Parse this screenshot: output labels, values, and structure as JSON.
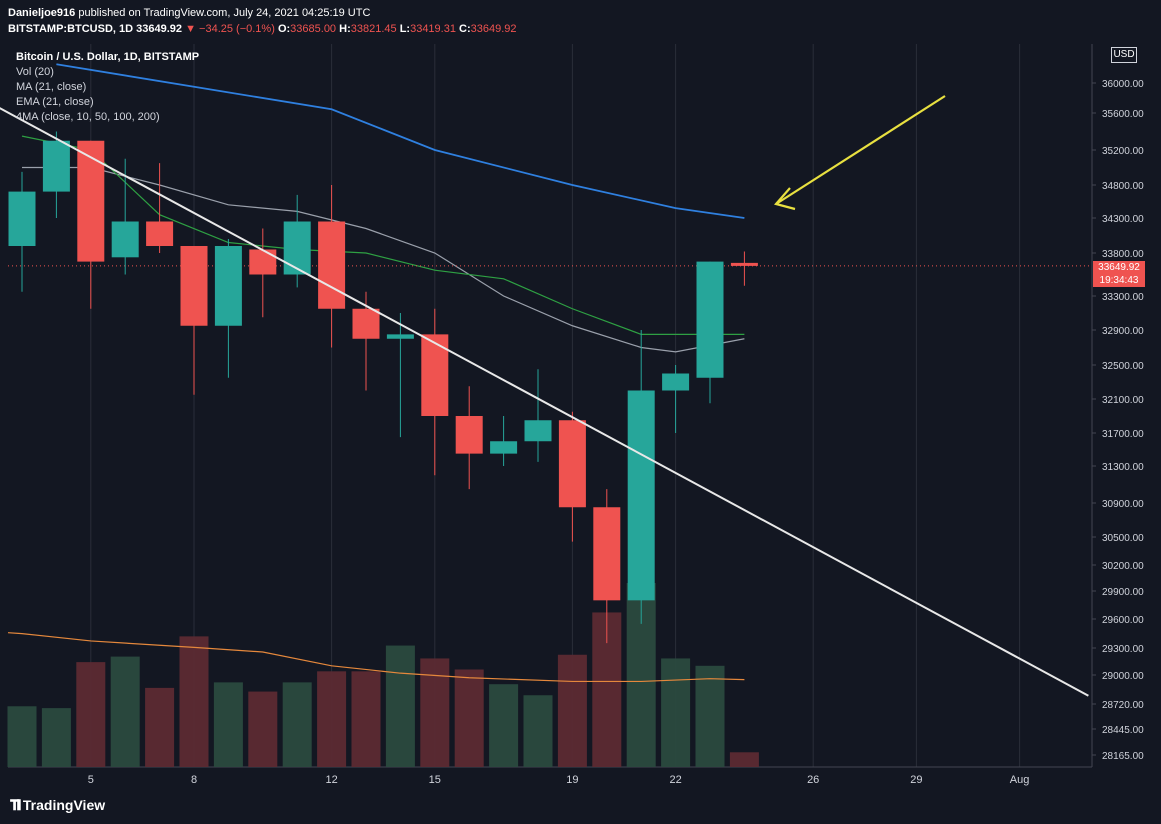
{
  "header": {
    "author": "Danieljoe916",
    "published": "published on TradingView.com, July 24, 2021 04:25:19 UTC"
  },
  "quote": {
    "symbol": "BITSTAMP:BTCUSD, 1D",
    "last": "33649.92",
    "change": "▼ −34.25 (−0.1%)",
    "open_label": "O:",
    "open": "33685.00",
    "high_label": "H:",
    "high": "33821.45",
    "low_label": "L:",
    "low": "33419.31",
    "close_label": "C:",
    "close": "33649.92"
  },
  "legend": {
    "title": "Bitcoin / U.S. Dollar, 1D, BITSTAMP",
    "lines": [
      "Vol (20)",
      "MA (21, close)",
      "EMA (21, close)",
      "4MA (close, 10, 50, 100, 200)"
    ]
  },
  "axis": {
    "currency": "USD",
    "price_ticks": [
      "36000.00",
      "35600.00",
      "35200.00",
      "34800.00",
      "34300.00",
      "33800.00",
      "33300.00",
      "32900.00",
      "32500.00",
      "32100.00",
      "31700.00",
      "31300.00",
      "30900.00",
      "30500.00",
      "30200.00",
      "29900.00",
      "29600.00",
      "29300.00",
      "29000.00",
      "28720.00",
      "28445.00",
      "28165.00"
    ],
    "date_ticks": [
      "5",
      "8",
      "12",
      "15",
      "19",
      "22",
      "26",
      "29",
      "Aug"
    ]
  },
  "price_tag": {
    "price": "33649.92",
    "countdown": "19:34:43"
  },
  "brand": {
    "name": "TradingView"
  },
  "colors": {
    "background": "#131722",
    "up": "#26a69a",
    "down": "#ef5350",
    "vol_up": "#2a4a3f",
    "vol_down": "#5c2a33",
    "ema_blue": "#2f80e0",
    "green_ma": "#2ea043",
    "gray_ma": "#9aa0ab",
    "orange_ma": "#e5883c",
    "trendline": "#e8e8e8",
    "arrow": "#e8e040",
    "grid": "#2a2e39"
  },
  "chart_data": {
    "type": "candlestick",
    "title": "Bitcoin / U.S. Dollar, 1D, BITSTAMP",
    "x_range": [
      "2021-07-03",
      "2021-08-01"
    ],
    "ylim": [
      28100,
      36200
    ],
    "candles": [
      {
        "date": "2021-07-03",
        "open": 33900,
        "high": 34950,
        "low": 33350,
        "close": 34700
      },
      {
        "date": "2021-07-04",
        "open": 34700,
        "high": 35400,
        "low": 34300,
        "close": 35300
      },
      {
        "date": "2021-07-05",
        "open": 35300,
        "high": 35300,
        "low": 33150,
        "close": 33700
      },
      {
        "date": "2021-07-06",
        "open": 33750,
        "high": 35100,
        "low": 33550,
        "close": 34250
      },
      {
        "date": "2021-07-07",
        "open": 34250,
        "high": 35050,
        "low": 33800,
        "close": 33900
      },
      {
        "date": "2021-07-08",
        "open": 33900,
        "high": 33900,
        "low": 32150,
        "close": 32950
      },
      {
        "date": "2021-07-09",
        "open": 32950,
        "high": 34000,
        "low": 32350,
        "close": 33900
      },
      {
        "date": "2021-07-10",
        "open": 33850,
        "high": 34150,
        "low": 33050,
        "close": 33550
      },
      {
        "date": "2021-07-11",
        "open": 33550,
        "high": 34650,
        "low": 33400,
        "close": 34250
      },
      {
        "date": "2021-07-12",
        "open": 34250,
        "high": 34800,
        "low": 32700,
        "close": 33150
      },
      {
        "date": "2021-07-13",
        "open": 33150,
        "high": 33350,
        "low": 32200,
        "close": 32800
      },
      {
        "date": "2021-07-14",
        "open": 32800,
        "high": 33100,
        "low": 31650,
        "close": 32850
      },
      {
        "date": "2021-07-15",
        "open": 32850,
        "high": 33150,
        "low": 31200,
        "close": 31900
      },
      {
        "date": "2021-07-16",
        "open": 31900,
        "high": 32250,
        "low": 31050,
        "close": 31450
      },
      {
        "date": "2021-07-17",
        "open": 31450,
        "high": 31900,
        "low": 31300,
        "close": 31600
      },
      {
        "date": "2021-07-18",
        "open": 31600,
        "high": 32450,
        "low": 31350,
        "close": 31850
      },
      {
        "date": "2021-07-19",
        "open": 31850,
        "high": 31950,
        "low": 30450,
        "close": 30850
      },
      {
        "date": "2021-07-20",
        "open": 30850,
        "high": 31050,
        "low": 29350,
        "close": 29800
      },
      {
        "date": "2021-07-21",
        "open": 29800,
        "high": 32900,
        "low": 29550,
        "close": 32200
      },
      {
        "date": "2021-07-22",
        "open": 32200,
        "high": 32500,
        "low": 31700,
        "close": 32400
      },
      {
        "date": "2021-07-23",
        "open": 32350,
        "high": 33700,
        "low": 32050,
        "close": 33700
      },
      {
        "date": "2021-07-24",
        "open": 33685,
        "high": 33821.45,
        "low": 33419.31,
        "close": 33649.92
      }
    ],
    "volume_relative": [
      0.33,
      0.32,
      0.57,
      0.6,
      0.43,
      0.71,
      0.46,
      0.41,
      0.46,
      0.52,
      0.52,
      0.66,
      0.59,
      0.53,
      0.45,
      0.39,
      0.61,
      0.84,
      1.0,
      0.59,
      0.55,
      0.08
    ],
    "series": [
      {
        "name": "EMA (21, close)",
        "color": "#2f80e0",
        "x": [
          "2021-07-04",
          "2021-07-08",
          "2021-07-12",
          "2021-07-15",
          "2021-07-19",
          "2021-07-22",
          "2021-07-24"
        ],
        "values": [
          36250,
          35950,
          35650,
          35200,
          34800,
          34450,
          34300
        ]
      },
      {
        "name": "MA (21, close)",
        "color": "#9aa0ab",
        "x": [
          "2021-07-03",
          "2021-07-05",
          "2021-07-07",
          "2021-07-09",
          "2021-07-11",
          "2021-07-13",
          "2021-07-15",
          "2021-07-17",
          "2021-07-19",
          "2021-07-21",
          "2021-07-22",
          "2021-07-24"
        ],
        "values": [
          35000,
          35000,
          34800,
          34500,
          34400,
          34150,
          33800,
          33300,
          32950,
          32700,
          32650,
          32800
        ]
      },
      {
        "name": "green",
        "color": "#2ea043",
        "x": [
          "2021-07-03",
          "2021-07-05",
          "2021-07-07",
          "2021-07-09",
          "2021-07-11",
          "2021-07-13",
          "2021-07-15",
          "2021-07-17",
          "2021-07-19",
          "2021-07-21",
          "2021-07-22",
          "2021-07-24"
        ],
        "values": [
          35350,
          35200,
          34350,
          33950,
          33850,
          33800,
          33600,
          33500,
          33150,
          32850,
          32850,
          32850
        ]
      },
      {
        "name": "orange",
        "color": "#e5883c",
        "volume_pane": true,
        "x": [
          "2021-07-03",
          "2021-07-05",
          "2021-07-08",
          "2021-07-10",
          "2021-07-12",
          "2021-07-14",
          "2021-07-16",
          "2021-07-19",
          "2021-07-21",
          "2021-07-23",
          "2021-07-24"
        ],
        "values": [
          1.45,
          1.37,
          1.3,
          1.25,
          1.1,
          1.02,
          0.97,
          0.93,
          0.93,
          0.96,
          0.95
        ]
      }
    ],
    "trendline": {
      "from": {
        "date": "2021-07-01",
        "price": 36000
      },
      "to": {
        "date": "2021-08-03",
        "price": 28800
      }
    },
    "last_price_line": 33649.92
  }
}
